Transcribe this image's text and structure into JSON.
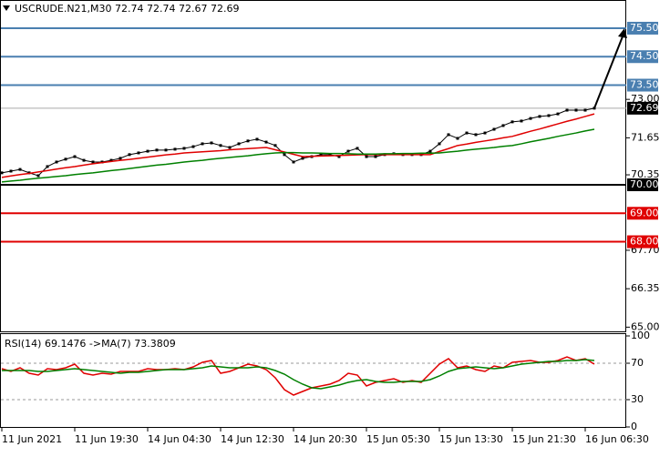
{
  "chart_data": [
    {
      "type": "line",
      "title": "USCRUDE.N21,M30  72.74 72.74 72.67 72.69",
      "categories": [
        "11 Jun 2021",
        null,
        null,
        null,
        null,
        null,
        null,
        null,
        "11 Jun 19:30",
        null,
        null,
        null,
        null,
        null,
        null,
        null,
        "14 Jun 04:30",
        null,
        null,
        null,
        null,
        null,
        null,
        null,
        "14 Jun 12:30",
        null,
        null,
        null,
        null,
        null,
        null,
        null,
        "14 Jun 20:30",
        null,
        null,
        null,
        null,
        null,
        null,
        null,
        "15 Jun 05:30",
        null,
        null,
        null,
        null,
        null,
        null,
        null,
        "15 Jun 13:30",
        null,
        null,
        null,
        null,
        null,
        null,
        null,
        "15 Jun 21:30",
        null,
        null,
        null,
        null,
        null,
        null,
        null,
        "16 Jun 06:30",
        null
      ],
      "series": [
        {
          "name": "Close",
          "color": "#000000",
          "values": [
            70.42,
            70.48,
            70.54,
            70.42,
            70.32,
            70.64,
            70.8,
            70.9,
            70.99,
            70.86,
            70.8,
            70.8,
            70.86,
            70.93,
            71.06,
            71.12,
            71.18,
            71.22,
            71.22,
            71.25,
            71.28,
            71.34,
            71.44,
            71.47,
            71.38,
            71.31,
            71.44,
            71.54,
            71.6,
            71.5,
            71.38,
            71.06,
            70.8,
            70.93,
            70.99,
            71.06,
            71.06,
            70.99,
            71.18,
            71.28,
            70.99,
            70.99,
            71.06,
            71.09,
            71.06,
            71.06,
            71.06,
            71.18,
            71.44,
            71.76,
            71.63,
            71.82,
            71.76,
            71.82,
            71.95,
            72.08,
            72.21,
            72.24,
            72.33,
            72.4,
            72.43,
            72.49,
            72.62,
            72.62,
            72.62,
            72.69
          ]
        },
        {
          "name": "MA red",
          "color": "#e00000",
          "values": [
            70.26,
            70.31,
            70.36,
            70.4,
            70.45,
            70.5,
            70.55,
            70.6,
            70.64,
            70.69,
            70.74,
            70.78,
            70.82,
            70.86,
            70.89,
            70.93,
            70.97,
            71.01,
            71.05,
            71.08,
            71.12,
            71.14,
            71.16,
            71.18,
            71.2,
            71.23,
            71.25,
            71.27,
            71.29,
            71.31,
            71.23,
            71.15,
            71.07,
            70.99,
            71.0,
            71.01,
            71.02,
            71.03,
            71.04,
            71.05,
            71.06,
            71.06,
            71.06,
            71.06,
            71.06,
            71.06,
            71.06,
            71.06,
            71.17,
            71.27,
            71.38,
            71.43,
            71.49,
            71.54,
            71.59,
            71.65,
            71.7,
            71.79,
            71.88,
            71.96,
            72.05,
            72.14,
            72.23,
            72.31,
            72.4,
            72.49
          ]
        },
        {
          "name": "MA green",
          "color": "#008000",
          "values": [
            70.1,
            70.13,
            70.16,
            70.2,
            70.23,
            70.26,
            70.29,
            70.32,
            70.36,
            70.39,
            70.42,
            70.46,
            70.5,
            70.53,
            70.57,
            70.61,
            70.65,
            70.69,
            70.72,
            70.76,
            70.8,
            70.83,
            70.86,
            70.9,
            70.93,
            70.96,
            70.99,
            71.02,
            71.06,
            71.09,
            71.12,
            71.13,
            71.13,
            71.12,
            71.12,
            71.11,
            71.1,
            71.1,
            71.09,
            71.08,
            71.08,
            71.08,
            71.09,
            71.09,
            71.1,
            71.1,
            71.11,
            71.11,
            71.12,
            71.15,
            71.18,
            71.22,
            71.25,
            71.28,
            71.31,
            71.35,
            71.38,
            71.44,
            71.51,
            71.57,
            71.63,
            71.7,
            71.76,
            71.82,
            71.89,
            71.95
          ]
        }
      ],
      "ylim": [
        64.82,
        76.49
      ],
      "yticks": [
        {
          "value": 73,
          "label": "73.00"
        },
        71.65,
        70.35,
        {
          "value": 67.7,
          "label": "67.70"
        },
        66.35,
        {
          "value": 65,
          "label": "65.00"
        }
      ],
      "levels": [
        {
          "value": 75.5,
          "label": "75.50",
          "color": "#4a7fb0"
        },
        {
          "value": 74.5,
          "label": "74.50",
          "color": "#4a7fb0"
        },
        {
          "value": 73.5,
          "label": "73.50",
          "color": "#4a7fb0"
        },
        {
          "value": 72.69,
          "label": "72.69",
          "color": "#000000"
        },
        {
          "value": 70,
          "label": "70.00",
          "color": "#000000"
        },
        {
          "value": 69,
          "label": "69.00",
          "color": "#e00000"
        },
        {
          "value": 68,
          "label": "68.00",
          "color": "#e00000"
        }
      ]
    },
    {
      "type": "line",
      "title": "RSI(14) 69.1476  ->MA(7) 73.3809",
      "series": [
        {
          "name": "RSI(14)",
          "color": "#e00000",
          "values": [
            64,
            61,
            65,
            59,
            57,
            64,
            63,
            65,
            69,
            59,
            57,
            59,
            58,
            61,
            61,
            61,
            64,
            63,
            63,
            64,
            63,
            66,
            71,
            73,
            59,
            61,
            65,
            69,
            67,
            63,
            54,
            41,
            35,
            39,
            43,
            45,
            47,
            51,
            59,
            57,
            45,
            49,
            51,
            53,
            49,
            51,
            49,
            59,
            69,
            75,
            65,
            67,
            63,
            61,
            67,
            65,
            71,
            72,
            73,
            71,
            71,
            73,
            77,
            73,
            75,
            69
          ]
        },
        {
          "name": "MA(7)",
          "color": "#008000",
          "values": [
            62,
            62,
            62,
            62,
            61,
            61,
            62,
            63,
            64,
            63,
            62,
            61,
            60,
            59,
            60,
            60,
            61,
            62,
            63,
            63,
            63,
            64,
            65,
            67,
            66,
            65,
            65,
            65,
            66,
            65,
            62,
            58,
            52,
            47,
            43,
            42,
            44,
            46,
            49,
            51,
            52,
            50,
            49,
            49,
            50,
            50,
            50,
            52,
            56,
            61,
            64,
            65,
            66,
            65,
            64,
            65,
            67,
            69,
            70,
            71,
            72,
            72,
            73,
            73,
            74,
            73
          ]
        }
      ],
      "ylim": [
        0,
        100
      ],
      "yticks": [
        100,
        70,
        30,
        0
      ],
      "levels": [
        70,
        30
      ]
    }
  ]
}
